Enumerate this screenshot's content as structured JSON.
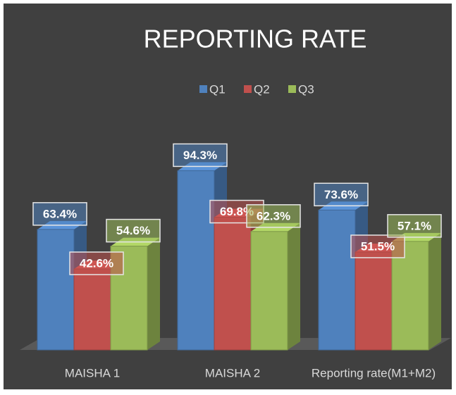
{
  "chart_data": {
    "type": "bar3d",
    "title": "REPORTING RATE",
    "categories": [
      "MAISHA 1",
      "MAISHA 2",
      "Reporting rate(M1+M2)"
    ],
    "series": [
      {
        "name": "Q1",
        "color": "#4f81bd",
        "values": [
          63.4,
          94.3,
          73.6
        ],
        "value_labels": [
          "63.4%",
          "94.3%",
          "73.6%"
        ]
      },
      {
        "name": "Q2",
        "color": "#c0504d",
        "values": [
          42.6,
          69.8,
          51.5
        ],
        "value_labels": [
          "42.6%",
          "69.8%",
          "51.5%"
        ]
      },
      {
        "name": "Q3",
        "color": "#9bbb59",
        "values": [
          54.6,
          62.3,
          57.1
        ],
        "value_labels": [
          "54.6%",
          "62.3%",
          "57.1%"
        ]
      }
    ],
    "legend": "top"
  }
}
